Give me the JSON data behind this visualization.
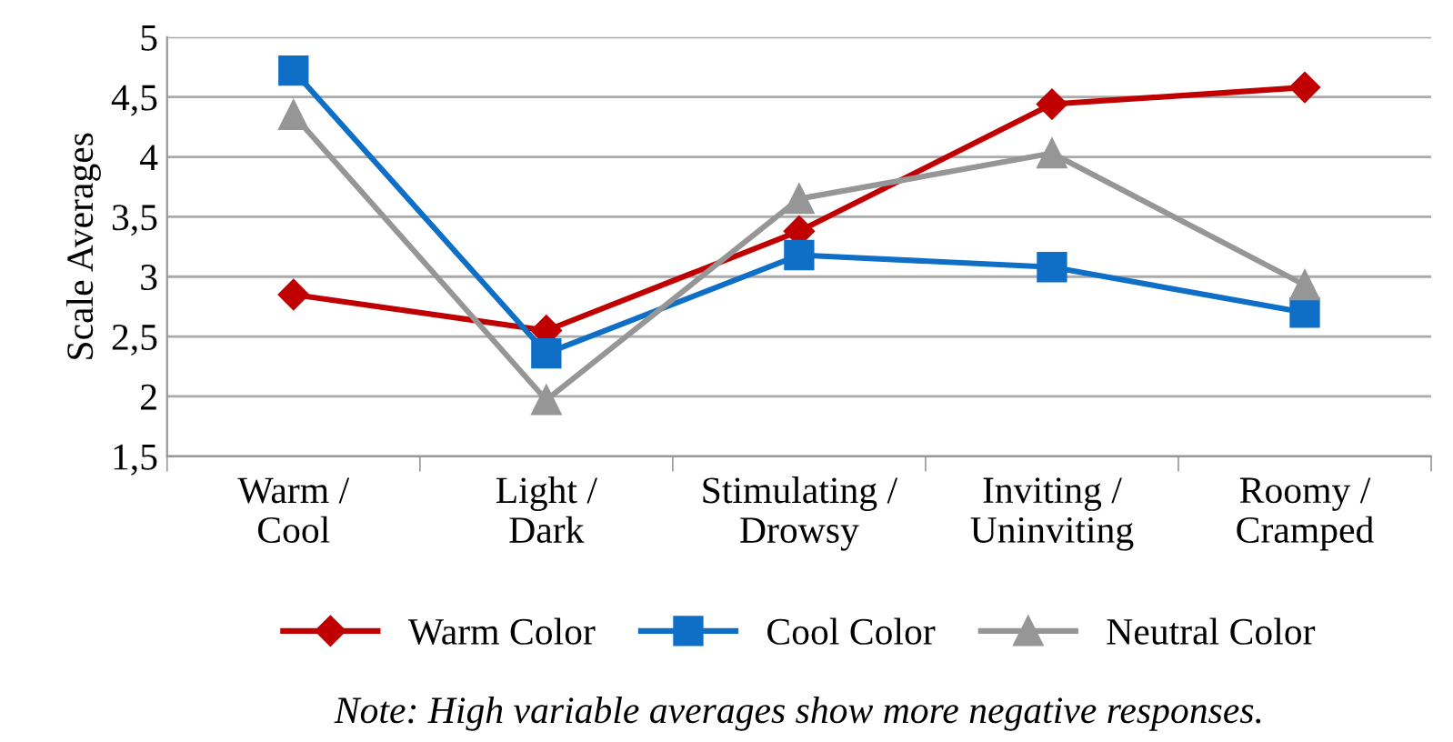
{
  "chart_data": {
    "type": "line",
    "ylabel": "Scale Averages",
    "categories": [
      "Warm /\nCool",
      "Light /\nDark",
      "Stimulating /\nDrowsy",
      "Inviting /\nUninviting",
      "Roomy /\nCramped"
    ],
    "series": [
      {
        "name": "Warm Color",
        "color": "#c00000",
        "marker": "diamond",
        "values": [
          2.85,
          2.55,
          3.38,
          4.44,
          4.58
        ]
      },
      {
        "name": "Cool Color",
        "color": "#0f6fc6",
        "marker": "square",
        "values": [
          4.72,
          2.36,
          3.18,
          3.08,
          2.7
        ]
      },
      {
        "name": "Neutral Color",
        "color": "#969696",
        "marker": "triangle",
        "values": [
          4.35,
          1.97,
          3.65,
          4.03,
          2.93
        ]
      }
    ],
    "ylim": [
      1.5,
      5
    ],
    "yticks": [
      {
        "value": 1.5,
        "label": "1,5"
      },
      2,
      {
        "value": 2.5,
        "label": "2,5"
      },
      3,
      {
        "value": 3.5,
        "label": "3,5"
      },
      4,
      {
        "value": 4.5,
        "label": "4,5"
      },
      5
    ],
    "grid": "y",
    "legend": "bottom",
    "line_style": "solid",
    "annotations": [
      "Note: High variable averages show more negative responses."
    ]
  }
}
